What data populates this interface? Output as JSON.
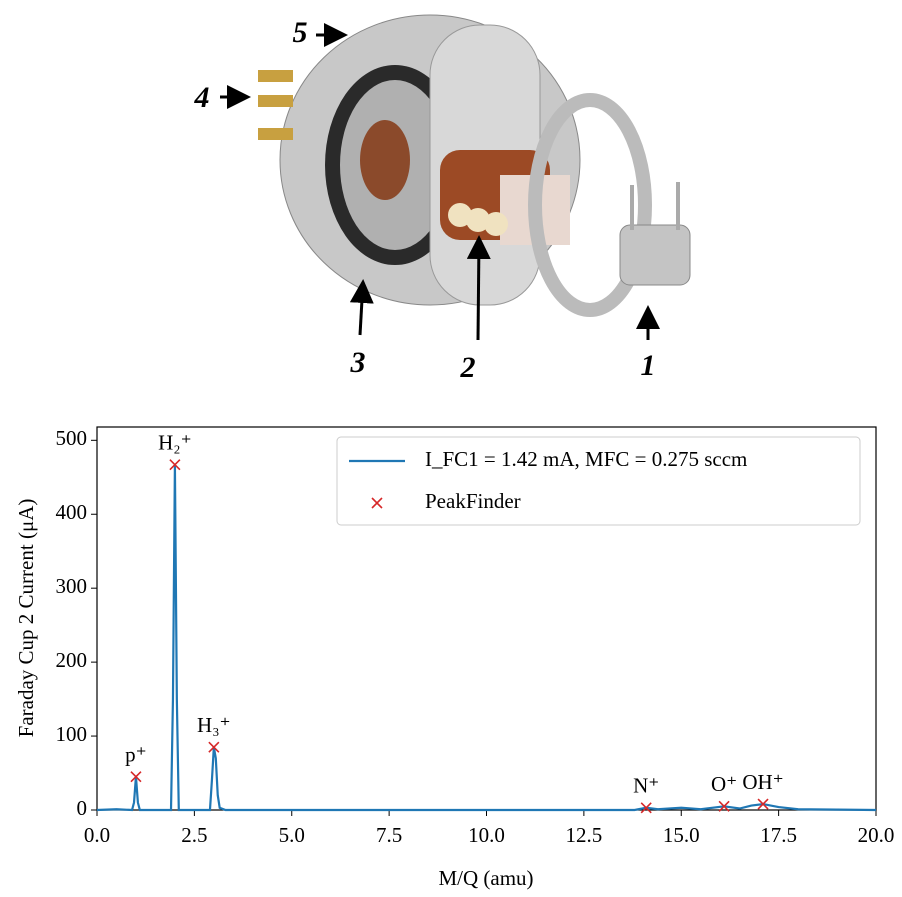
{
  "diagram": {
    "labels": [
      "5",
      "4",
      "3",
      "2",
      "1"
    ]
  },
  "chart_data": {
    "type": "line",
    "xlabel": "M/Q (amu)",
    "ylabel": "Faraday Cup 2 Current (μA)",
    "xlim": [
      0,
      20
    ],
    "ylim": [
      0,
      518
    ],
    "xticks": [
      {
        "value": 0,
        "label": "0.0"
      },
      2.5,
      {
        "value": 5,
        "label": "5.0"
      },
      7.5,
      {
        "value": 10,
        "label": "10.0"
      },
      12.5,
      {
        "value": 15,
        "label": "15.0"
      },
      17.5,
      {
        "value": 20,
        "label": "20.0"
      }
    ],
    "yticks": [
      0,
      100,
      200,
      300,
      400,
      500
    ],
    "legend": "upper right",
    "series": [
      {
        "name": "I_FC1 = 1.42 mA, MFC = 0.275 sccm",
        "color": "#1f77b4",
        "type": "line",
        "x": [
          0,
          0.5,
          0.9,
          0.95,
          1.0,
          1.05,
          1.1,
          1.9,
          1.95,
          2.0,
          2.05,
          2.1,
          2.9,
          2.95,
          3.0,
          3.05,
          3.1,
          3.15,
          3.3,
          13.8,
          14.1,
          14.4,
          15.0,
          15.5,
          16.1,
          16.5,
          16.8,
          17.1,
          17.5,
          18.0,
          20.0
        ],
        "values": [
          0,
          1,
          0,
          10,
          45,
          10,
          0,
          0,
          150,
          467,
          150,
          0,
          0,
          40,
          85,
          70,
          20,
          3,
          0,
          0,
          3,
          1,
          3,
          1,
          5,
          2,
          6,
          8,
          4,
          1,
          0
        ]
      },
      {
        "name": "PeakFinder",
        "color": "#d62728",
        "type": "scatter",
        "x": [
          1.0,
          2.0,
          3.0,
          14.1,
          16.1,
          17.1
        ],
        "values": [
          45,
          467,
          85,
          3,
          5,
          8
        ]
      }
    ],
    "annotations": [
      "p⁺",
      "H₂⁺",
      "H₃⁺",
      "N⁺",
      "O⁺",
      "OH⁺"
    ]
  }
}
